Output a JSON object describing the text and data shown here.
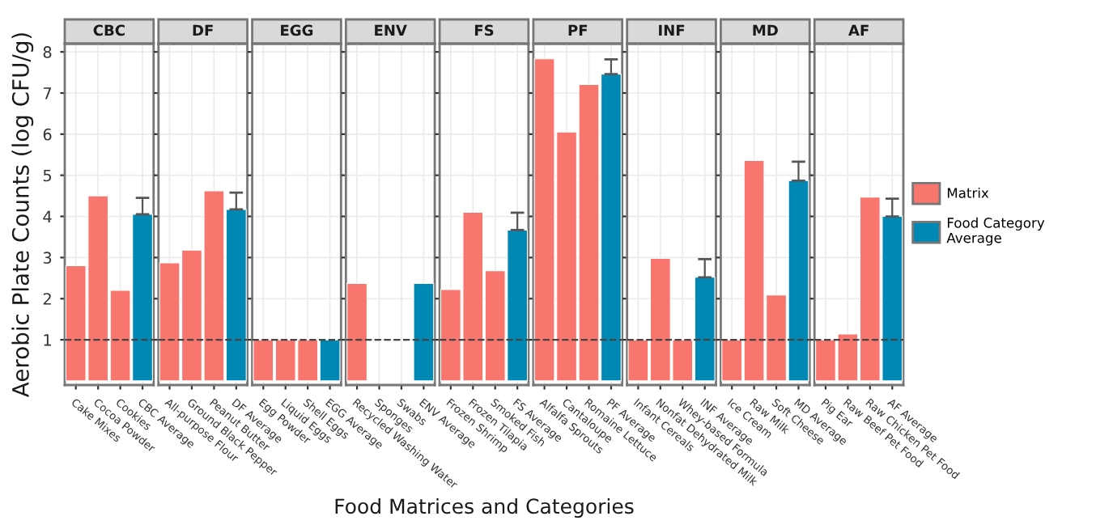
{
  "chart_data": [
    {
      "type": "bar",
      "title": "CBC",
      "ylabel": "Aerobic Plate Counts (log CFU/g)",
      "categories": [
        "Cake Mixes",
        "Cocoa Powder",
        "Cookies",
        "CBC Average"
      ],
      "series": [
        {
          "color": "#f8766d",
          "values": [
            2.8,
            4.5,
            2.2,
            null
          ]
        },
        {
          "color": "#0088b5",
          "values": [
            null,
            null,
            null,
            4.05
          ],
          "errors": [
            null,
            null,
            null,
            [
              4.05,
              4.45
            ]
          ]
        }
      ],
      "ylim": [
        -0.1,
        8.2
      ],
      "yticks": [
        1,
        2,
        3,
        4,
        5,
        6,
        7,
        8
      ],
      "grid": true,
      "ref_lines": [
        {
          "axis": "y",
          "value": 1,
          "line_style": "dashed",
          "color": "#444444"
        }
      ],
      "legend": false
    },
    {
      "type": "bar",
      "title": "DF",
      "categories": [
        "All-purpose Flour",
        "Ground Black Pepper",
        "Peanut Butter",
        "DF Average"
      ],
      "series": [
        {
          "color": "#f8766d",
          "values": [
            2.87,
            3.18,
            4.62,
            null
          ]
        },
        {
          "color": "#0088b5",
          "values": [
            null,
            null,
            null,
            4.17
          ],
          "errors": [
            null,
            null,
            null,
            [
              4.17,
              4.58
            ]
          ]
        }
      ],
      "ylim": [
        -0.1,
        8.2
      ],
      "yticks": [
        1,
        2,
        3,
        4,
        5,
        6,
        7,
        8
      ],
      "tick_labels": "x",
      "grid": true,
      "ref_lines": [
        {
          "axis": "y",
          "value": 1,
          "line_style": "dashed",
          "color": "#444444"
        }
      ],
      "legend": false
    },
    {
      "type": "bar",
      "title": "EGG",
      "categories": [
        "Egg Powder",
        "Liquid Eggs",
        "Shell Eggs",
        "EGG Average"
      ],
      "series": [
        {
          "color": "#f8766d",
          "values": [
            1,
            1,
            1,
            null
          ]
        },
        {
          "color": "#0088b5",
          "values": [
            null,
            null,
            null,
            1
          ]
        }
      ],
      "ylim": [
        -0.1,
        8.2
      ],
      "yticks": [
        1,
        2,
        3,
        4,
        5,
        6,
        7,
        8
      ],
      "tick_labels": "x",
      "grid": true,
      "ref_lines": [
        {
          "axis": "y",
          "value": 1,
          "line_style": "dashed",
          "color": "#444444"
        }
      ],
      "legend": false
    },
    {
      "type": "bar",
      "title": "ENV",
      "categories": [
        "Recycled Washing Water",
        "Sponges",
        "Swabs",
        "ENV Average"
      ],
      "series": [
        {
          "color": "#f8766d",
          "values": [
            2.37,
            null,
            null,
            null
          ]
        },
        {
          "color": "#0088b5",
          "values": [
            null,
            null,
            null,
            2.37
          ]
        }
      ],
      "ylim": [
        -0.1,
        8.2
      ],
      "yticks": [
        1,
        2,
        3,
        4,
        5,
        6,
        7,
        8
      ],
      "tick_labels": "x",
      "grid": true,
      "ref_lines": [
        {
          "axis": "y",
          "value": 1,
          "line_style": "dashed",
          "color": "#444444"
        }
      ],
      "legend": false
    },
    {
      "type": "bar",
      "title": "FS",
      "xlabel": "Food Matrices and Categories",
      "categories": [
        "Frozen Shrimp",
        "Frozen Tilapia",
        "Smoked Fish",
        "FS Average"
      ],
      "series": [
        {
          "color": "#f8766d",
          "values": [
            2.22,
            4.1,
            2.68,
            null
          ]
        },
        {
          "color": "#0088b5",
          "values": [
            null,
            null,
            null,
            3.67
          ],
          "errors": [
            null,
            null,
            null,
            [
              3.67,
              4.09
            ]
          ]
        }
      ],
      "ylim": [
        -0.1,
        8.2
      ],
      "yticks": [
        1,
        2,
        3,
        4,
        5,
        6,
        7,
        8
      ],
      "tick_labels": "x",
      "grid": true,
      "ref_lines": [
        {
          "axis": "y",
          "value": 1,
          "line_style": "dashed",
          "color": "#444444"
        }
      ],
      "legend": false
    },
    {
      "type": "bar",
      "title": "PF",
      "categories": [
        "Alfalfa Sprouts",
        "Cantaloupe",
        "Romaine Lettuce",
        "PF Average"
      ],
      "series": [
        {
          "color": "#f8766d",
          "values": [
            7.83,
            6.05,
            7.21,
            null
          ]
        },
        {
          "color": "#0088b5",
          "values": [
            null,
            null,
            null,
            7.46
          ],
          "errors": [
            null,
            null,
            null,
            [
              7.46,
              7.82
            ]
          ]
        }
      ],
      "ylim": [
        -0.1,
        8.2
      ],
      "yticks": [
        1,
        2,
        3,
        4,
        5,
        6,
        7,
        8
      ],
      "tick_labels": "x",
      "grid": true,
      "ref_lines": [
        {
          "axis": "y",
          "value": 1,
          "line_style": "dashed",
          "color": "#444444"
        }
      ],
      "legend": false
    },
    {
      "type": "bar",
      "title": "INF",
      "categories": [
        "Infant Cereals",
        "Nonfat Dehydrated Milk",
        "Whey-based Formula",
        "INF Average"
      ],
      "series": [
        {
          "color": "#f8766d",
          "values": [
            1,
            2.98,
            1,
            null
          ]
        },
        {
          "color": "#0088b5",
          "values": [
            null,
            null,
            null,
            2.52
          ],
          "errors": [
            null,
            null,
            null,
            [
              2.52,
              2.96
            ]
          ]
        }
      ],
      "ylim": [
        -0.1,
        8.2
      ],
      "yticks": [
        1,
        2,
        3,
        4,
        5,
        6,
        7,
        8
      ],
      "tick_labels": "x",
      "grid": true,
      "ref_lines": [
        {
          "axis": "y",
          "value": 1,
          "line_style": "dashed",
          "color": "#444444"
        }
      ],
      "legend": false
    },
    {
      "type": "bar",
      "title": "MD",
      "categories": [
        "Ice Cream",
        "Raw Milk",
        "Soft Cheese",
        "MD Average"
      ],
      "series": [
        {
          "color": "#f8766d",
          "values": [
            1,
            5.36,
            2.09,
            null
          ]
        },
        {
          "color": "#0088b5",
          "values": [
            null,
            null,
            null,
            4.87
          ],
          "errors": [
            null,
            null,
            null,
            [
              4.87,
              5.33
            ]
          ]
        }
      ],
      "ylim": [
        -0.1,
        8.2
      ],
      "yticks": [
        1,
        2,
        3,
        4,
        5,
        6,
        7,
        8
      ],
      "tick_labels": "x",
      "grid": true,
      "ref_lines": [
        {
          "axis": "y",
          "value": 1,
          "line_style": "dashed",
          "color": "#444444"
        }
      ],
      "legend": false
    },
    {
      "type": "bar",
      "title": "AF",
      "categories": [
        "Pig Ear",
        "Raw Beef Pet Food",
        "Raw Chicken Pet Food",
        "AF Average"
      ],
      "series": [
        {
          "name": "Matrix",
          "color": "#f8766d",
          "values": [
            1,
            1.14,
            4.47,
            null
          ]
        },
        {
          "name": "Food Category Average",
          "color": "#0088b5",
          "values": [
            null,
            null,
            null,
            4.0
          ],
          "errors": [
            null,
            null,
            null,
            [
              4.0,
              4.43
            ]
          ]
        }
      ],
      "ylim": [
        -0.1,
        8.2
      ],
      "yticks": [
        1,
        2,
        3,
        4,
        5,
        6,
        7,
        8
      ],
      "tick_labels": "x",
      "grid": true,
      "ref_lines": [
        {
          "axis": "y",
          "value": 1,
          "line_style": "dashed",
          "color": "#444444"
        }
      ],
      "legend": "right"
    }
  ]
}
